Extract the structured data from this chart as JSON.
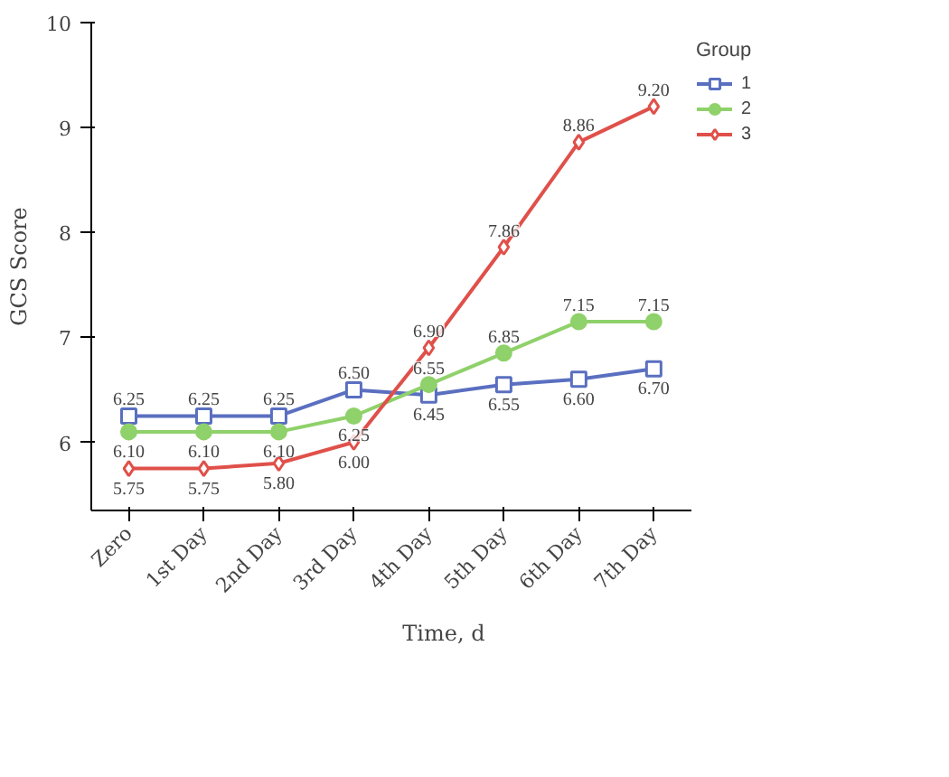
{
  "chart_data": {
    "type": "line",
    "xlabel": "Time, d",
    "ylabel": "GCS Score",
    "legend_title": "Group",
    "legend": "right",
    "grid": false,
    "categories": [
      "Zero",
      "1st Day",
      "2nd Day",
      "3rd Day",
      "4th Day",
      "5th Day",
      "6th Day",
      "7th Day"
    ],
    "ylim": [
      5.35,
      10
    ],
    "yticks": [
      6,
      7,
      8,
      9,
      10
    ],
    "series": [
      {
        "name": "1",
        "color": "#5a6fc0",
        "marker": "square",
        "values": [
          6.25,
          6.25,
          6.25,
          6.5,
          6.45,
          6.55,
          6.6,
          6.7
        ],
        "value_labels": [
          "6.25",
          "6.25",
          "6.25",
          "6.50",
          "6.45",
          "6.55",
          "6.60",
          "6.70"
        ]
      },
      {
        "name": "2",
        "color": "#8fd16a",
        "marker": "circle",
        "values": [
          6.1,
          6.1,
          6.1,
          6.25,
          6.55,
          6.85,
          7.15,
          7.15
        ],
        "value_labels": [
          "6.10",
          "6.10",
          "6.10",
          "6.25",
          "6.55",
          "6.85",
          "7.15",
          "7.15"
        ]
      },
      {
        "name": "3",
        "color": "#e0504a",
        "marker": "diamond",
        "values": [
          5.75,
          5.75,
          5.8,
          6.0,
          6.9,
          7.86,
          8.86,
          9.2
        ],
        "value_labels": [
          "5.75",
          "5.75",
          "5.80",
          "6.00",
          "6.90",
          "7.86",
          "8.86",
          "9.20"
        ]
      }
    ]
  }
}
